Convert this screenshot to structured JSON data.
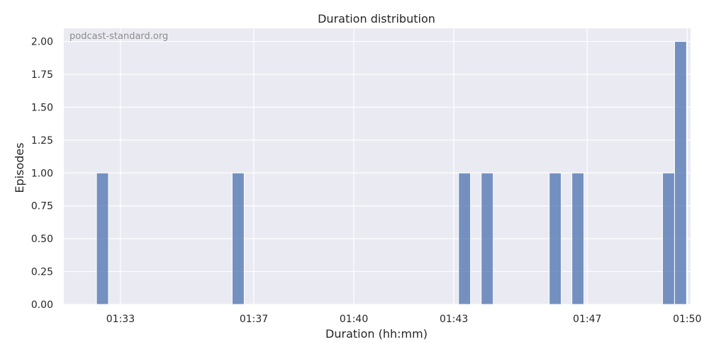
{
  "chart_data": {
    "type": "bar",
    "title": "Duration distribution",
    "xlabel": "Duration (hh:mm)",
    "ylabel": "Episodes",
    "watermark": "podcast-standard.org",
    "xlim_minutes": [
      91.3,
      110.1
    ],
    "ylim": [
      0,
      2.1
    ],
    "x_ticks": [
      {
        "value": 93,
        "label": "01:33"
      },
      {
        "value": 97,
        "label": "01:37"
      },
      {
        "value": 100,
        "label": "01:40"
      },
      {
        "value": 103,
        "label": "01:43"
      },
      {
        "value": 107,
        "label": "01:47"
      },
      {
        "value": 110,
        "label": "01:50"
      }
    ],
    "y_ticks": [
      {
        "value": 0,
        "label": "0.00"
      },
      {
        "value": 0.25,
        "label": "0.25"
      },
      {
        "value": 0.5,
        "label": "0.50"
      },
      {
        "value": 0.75,
        "label": "0.75"
      },
      {
        "value": 1,
        "label": "1.00"
      },
      {
        "value": 1.25,
        "label": "1.25"
      },
      {
        "value": 1.5,
        "label": "1.50"
      },
      {
        "value": 1.75,
        "label": "1.75"
      },
      {
        "value": 2,
        "label": "2.00"
      }
    ],
    "bins": [
      {
        "start": 92.28,
        "end": 92.64,
        "count": 1
      },
      {
        "start": 96.35,
        "end": 96.71,
        "count": 1
      },
      {
        "start": 103.14,
        "end": 103.5,
        "count": 1
      },
      {
        "start": 103.82,
        "end": 104.18,
        "count": 1
      },
      {
        "start": 105.86,
        "end": 106.22,
        "count": 1
      },
      {
        "start": 106.54,
        "end": 106.9,
        "count": 1
      },
      {
        "start": 109.26,
        "end": 109.62,
        "count": 1
      },
      {
        "start": 109.62,
        "end": 109.98,
        "count": 2
      }
    ],
    "grid": true,
    "colors": {
      "background": "#eaeaf2",
      "grid": "#ffffff",
      "bar": "#4c72b0"
    }
  }
}
